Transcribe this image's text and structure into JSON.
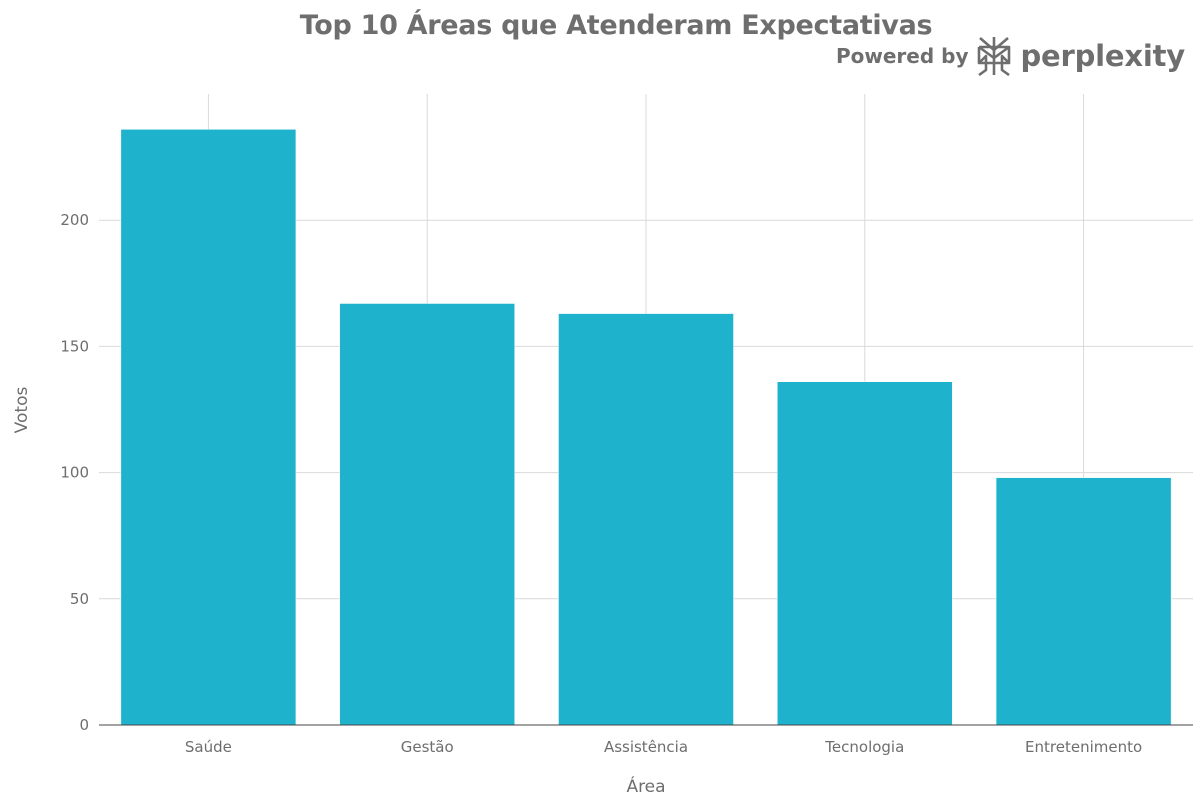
{
  "chart_data": {
    "type": "bar",
    "title": "Top 10 Áreas que Atenderam Expectativas",
    "xlabel": "Área",
    "ylabel": "Votos",
    "categories": [
      "Saúde",
      "Gestão",
      "Assistência",
      "Tecnologia",
      "Entretenimento"
    ],
    "values": [
      236,
      167,
      163,
      136,
      98
    ],
    "ylim": [
      0,
      250
    ],
    "yticks": [
      0,
      50,
      100,
      150,
      200
    ],
    "grid": true,
    "bar_color": "#1fb2cc"
  },
  "branding": {
    "prefix": "Powered by",
    "name": "perplexity",
    "icon": "perplexity-logo-icon"
  }
}
